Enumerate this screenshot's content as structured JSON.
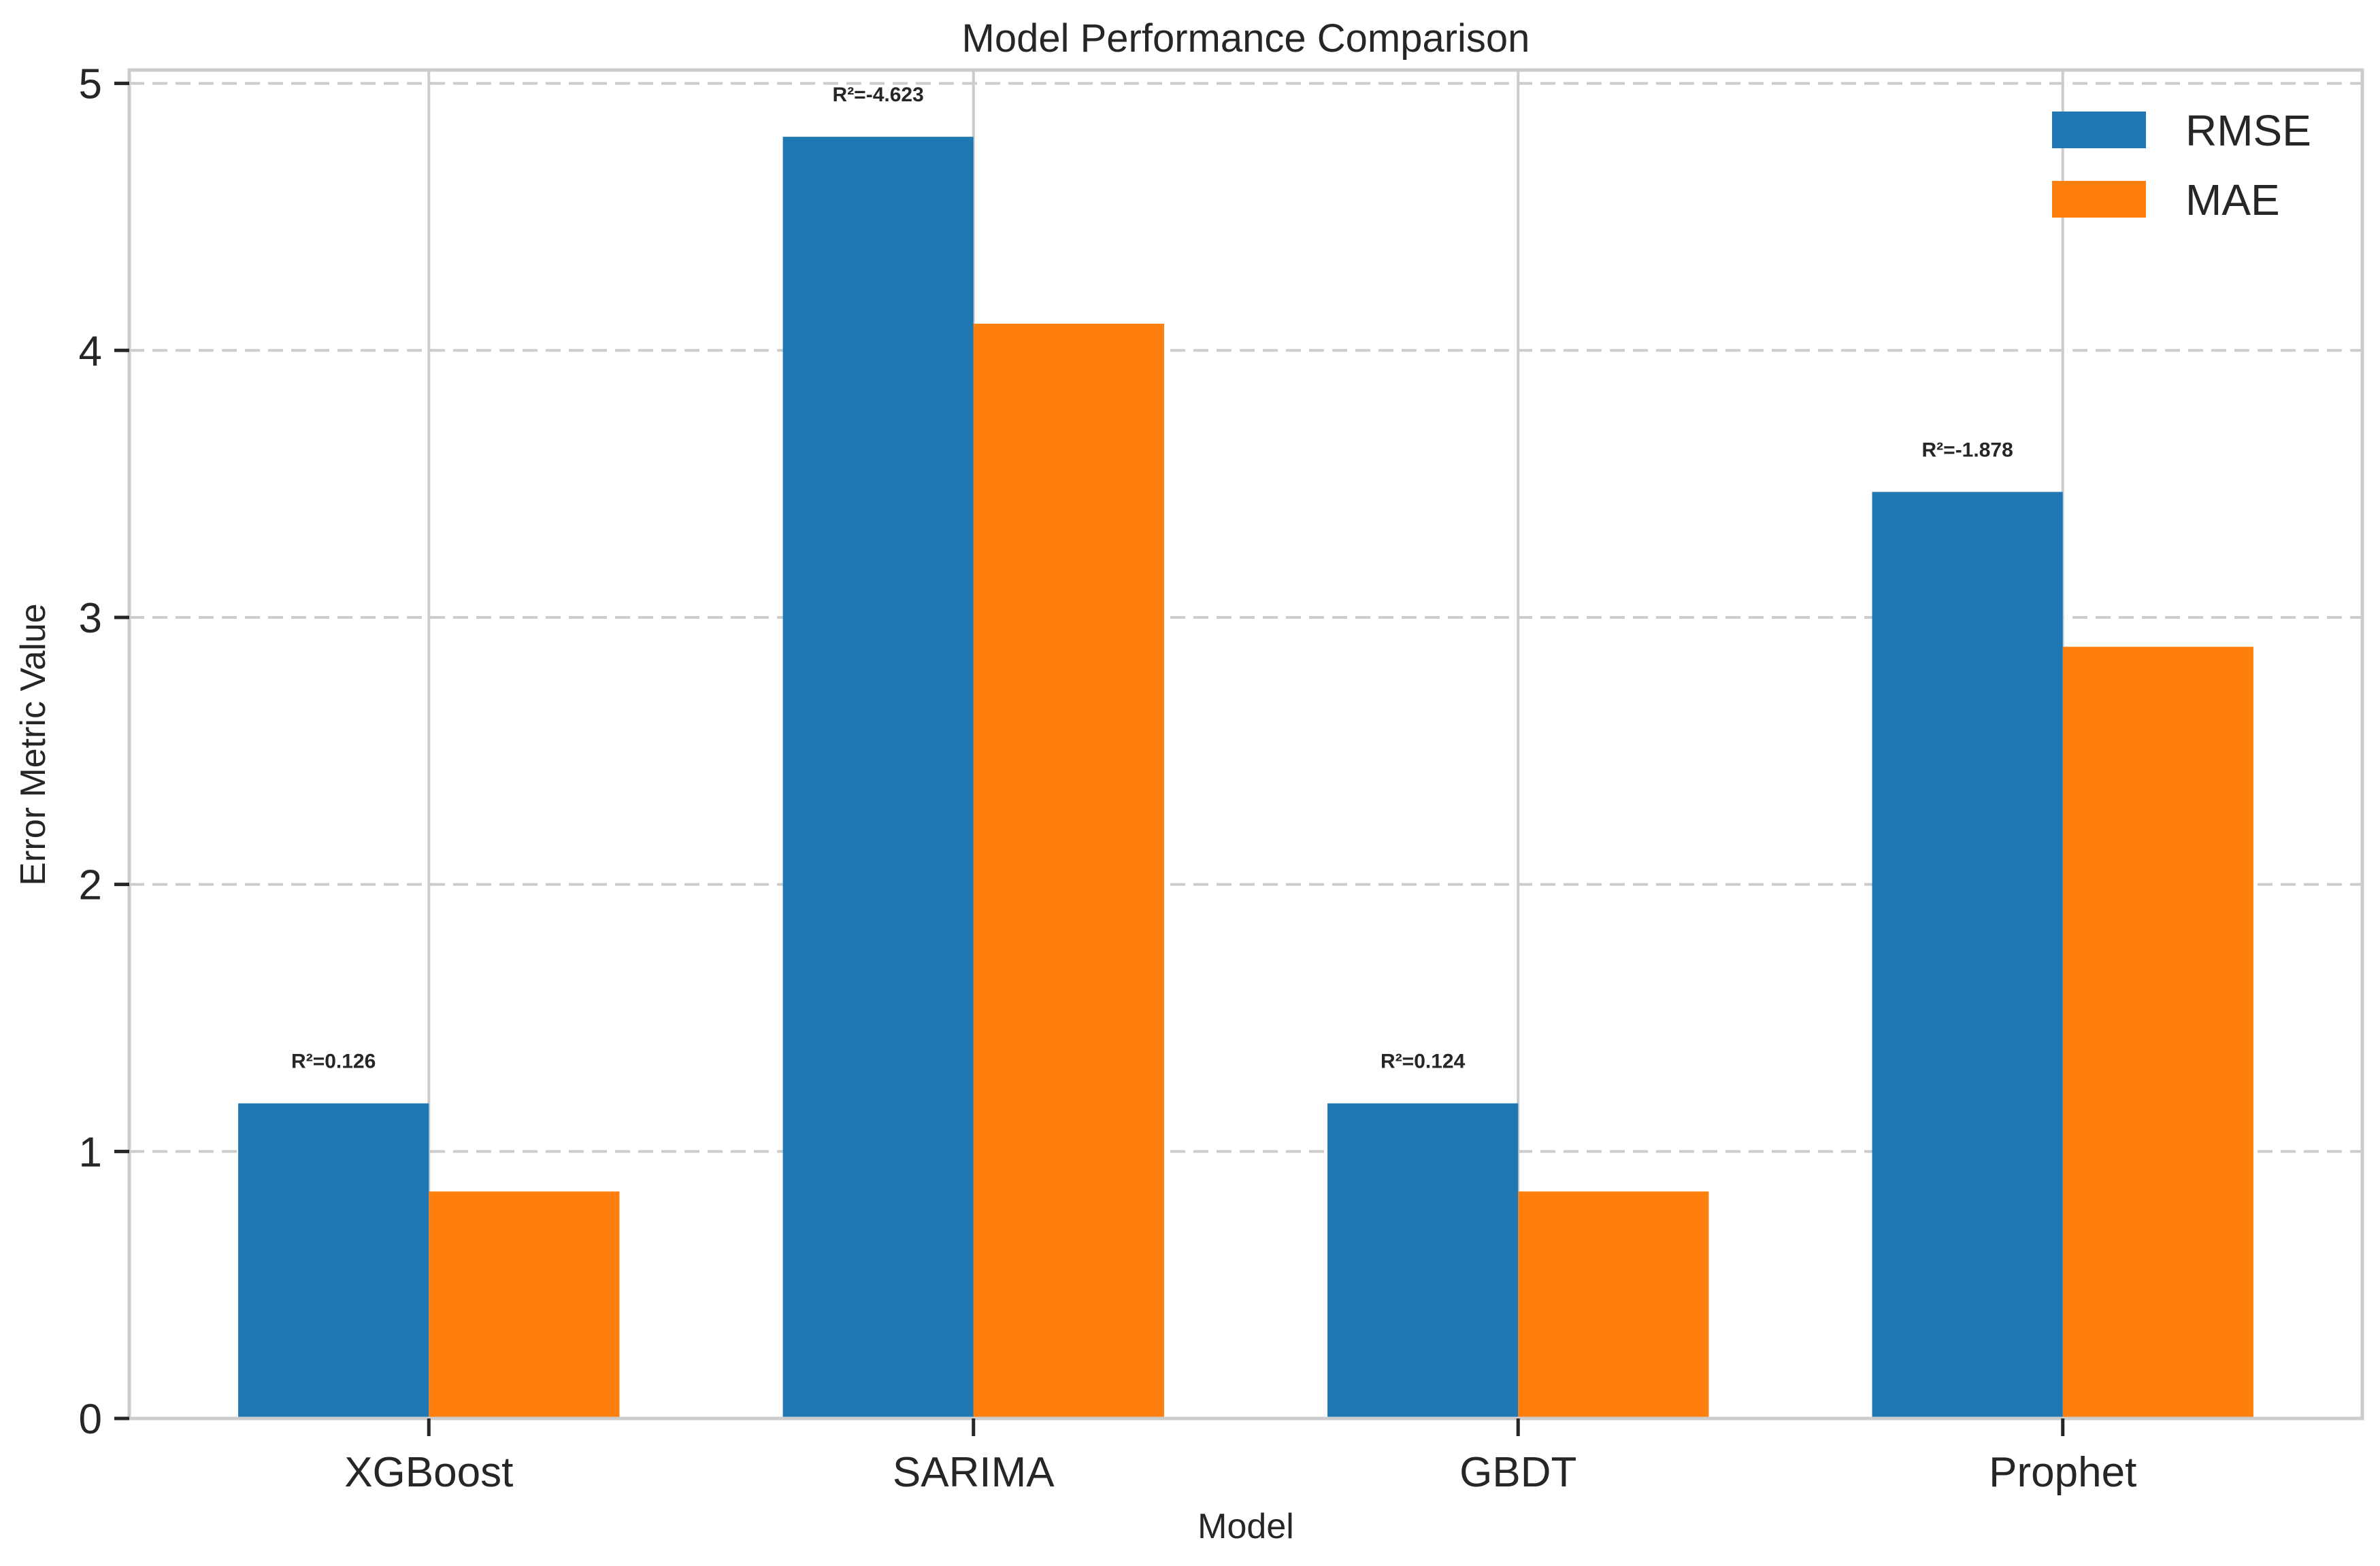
{
  "chart_data": {
    "type": "bar",
    "title": "Model Performance Comparison",
    "xlabel": "Model",
    "ylabel": "Error Metric Value",
    "categories": [
      "XGBoost",
      "SARIMA",
      "GBDT",
      "Prophet"
    ],
    "series": [
      {
        "name": "RMSE",
        "color": "#1f77b4",
        "values": [
          1.18,
          4.8,
          1.18,
          3.47
        ]
      },
      {
        "name": "MAE",
        "color": "#ff7f0e",
        "values": [
          0.85,
          4.1,
          0.85,
          2.89
        ]
      }
    ],
    "annotations": [
      "R²=0.126",
      "R²=-4.623",
      "R²=0.124",
      "R²=-1.878"
    ],
    "ylim": [
      0,
      5.05
    ],
    "yticks": [
      "0",
      "1",
      "2",
      "3",
      "4",
      "5"
    ],
    "grid": {
      "y": "dashed",
      "x": "solid"
    },
    "legend_position": "top-right"
  }
}
